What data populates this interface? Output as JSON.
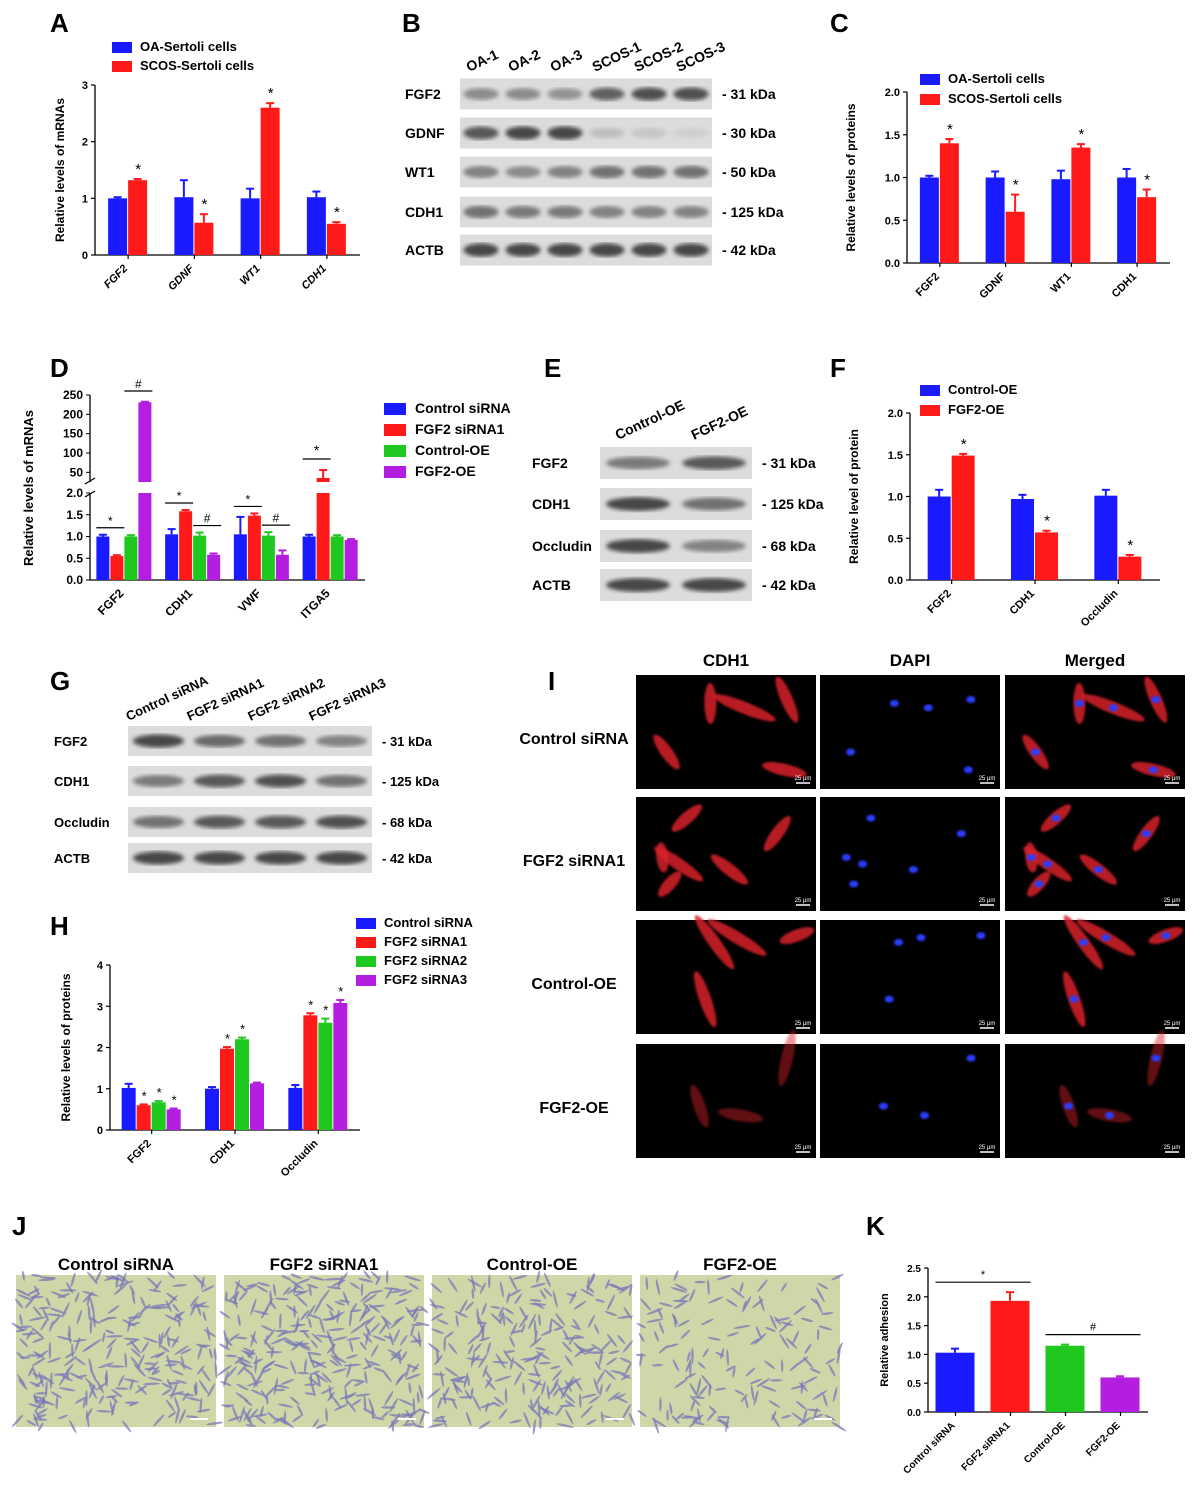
{
  "colors": {
    "blue": "#1a1aff",
    "red": "#ff1a1a",
    "green": "#1ec81e",
    "purple": "#b41ee0",
    "fluor_red": "#d8202a",
    "fluor_blue": "#2a3cff",
    "crystal_bg": "#cfd6a8",
    "crystal_cell": "#7a78b8"
  },
  "panel_letters": [
    "A",
    "B",
    "C",
    "D",
    "E",
    "F",
    "G",
    "H",
    "I",
    "J",
    "K"
  ],
  "chart_data": [
    {
      "id": "A",
      "type": "bar",
      "categories": [
        "FGF2",
        "GDNF",
        "WT1",
        "CDH1"
      ],
      "series": [
        {
          "name": "OA-Sertoli cells",
          "values": [
            1.0,
            1.02,
            1.0,
            1.02
          ],
          "errors": [
            0.02,
            0.3,
            0.17,
            0.1
          ]
        },
        {
          "name": "SCOS-Sertoli cells",
          "values": [
            1.32,
            0.57,
            2.6,
            0.55
          ],
          "errors": [
            0.02,
            0.15,
            0.08,
            0.03
          ]
        }
      ],
      "significance": [
        "*",
        "*",
        "*",
        "*"
      ],
      "ylabel": "Relative levels of mRNAs",
      "ylim": [
        0,
        3
      ],
      "yticks": [
        "0",
        "1",
        "2",
        "3"
      ],
      "category_style": "italic"
    },
    {
      "id": "C",
      "type": "bar",
      "categories": [
        "FGF2",
        "GDNF",
        "WT1",
        "CDH1"
      ],
      "series": [
        {
          "name": "OA-Sertoli cells",
          "values": [
            1.0,
            1.0,
            0.98,
            1.0
          ],
          "errors": [
            0.02,
            0.07,
            0.1,
            0.1
          ]
        },
        {
          "name": "SCOS-Sertoli cells",
          "values": [
            1.4,
            0.6,
            1.35,
            0.77
          ],
          "errors": [
            0.05,
            0.2,
            0.04,
            0.09
          ]
        }
      ],
      "significance": [
        "*",
        "*",
        "*",
        "*"
      ],
      "ylabel": "Relative levels of proteins",
      "ylim": [
        0,
        2.0
      ],
      "yticks": [
        "0.0",
        "0.5",
        "1.0",
        "1.5",
        "2.0"
      ]
    },
    {
      "id": "D",
      "type": "bar",
      "categories": [
        "FGF2",
        "CDH1",
        "VWF",
        "ITGA5"
      ],
      "series": [
        {
          "name": "Control siRNA",
          "values": [
            1.0,
            1.05,
            1.05,
            1.0
          ],
          "errors": [
            0.04,
            0.12,
            0.4,
            0.04
          ]
        },
        {
          "name": "FGF2 siRNA1",
          "values": [
            0.55,
            1.58,
            1.48,
            2.0
          ],
          "errors": [
            0.02,
            0.03,
            0.05,
            0.0
          ]
        },
        {
          "name": "Control-OE",
          "values": [
            1.0,
            1.02,
            1.02,
            1.0
          ],
          "errors": [
            0.03,
            0.07,
            0.08,
            0.03
          ]
        },
        {
          "name": "FGF2-OE",
          "values": [
            231,
            0.58,
            0.58,
            0.92
          ],
          "errors": [
            1.5,
            0.03,
            0.1,
            0.02
          ]
        }
      ],
      "significance_upper": [
        "#",
        "",
        "",
        "*"
      ],
      "significance_lower": [
        "*",
        "* #",
        "* #",
        ""
      ],
      "ylabel": "Relative levels of mRNAs",
      "broken_axis": true,
      "yticks_lower": [
        "0.0",
        "0.5",
        "1.0",
        "1.5",
        "2.0"
      ],
      "yticks_upper": [
        "50",
        "100",
        "150",
        "200",
        "250"
      ]
    },
    {
      "id": "F",
      "type": "bar",
      "categories": [
        "FGF2",
        "CDH1",
        "Occludin"
      ],
      "series": [
        {
          "name": "Control-OE",
          "values": [
            1.0,
            0.97,
            1.01
          ],
          "errors": [
            0.08,
            0.05,
            0.07
          ]
        },
        {
          "name": "FGF2-OE",
          "values": [
            1.49,
            0.57,
            0.28
          ],
          "errors": [
            0.02,
            0.02,
            0.02
          ]
        }
      ],
      "significance": [
        "*",
        "*",
        "*"
      ],
      "ylabel": "Relative level of protein",
      "ylim": [
        0,
        2.0
      ],
      "yticks": [
        "0.0",
        "0.5",
        "1.0",
        "1.5",
        "2.0"
      ]
    },
    {
      "id": "H",
      "type": "bar",
      "categories": [
        "FGF2",
        "CDH1",
        "Occludin"
      ],
      "series": [
        {
          "name": "Control siRNA",
          "values": [
            1.02,
            1.0,
            1.02
          ],
          "errors": [
            0.1,
            0.04,
            0.07
          ]
        },
        {
          "name": "FGF2 siRNA1",
          "values": [
            0.6,
            1.97,
            2.78
          ],
          "errors": [
            0.02,
            0.04,
            0.05
          ]
        },
        {
          "name": "FGF2 siRNA2",
          "values": [
            0.67,
            2.2,
            2.6
          ],
          "errors": [
            0.03,
            0.04,
            0.1
          ]
        },
        {
          "name": "FGF2 siRNA3",
          "values": [
            0.5,
            1.13,
            3.08
          ],
          "errors": [
            0.02,
            0.02,
            0.07
          ]
        }
      ],
      "significance": [
        [
          "*",
          "*",
          "*"
        ],
        [
          "*",
          "*",
          ""
        ],
        [
          "*",
          "*",
          "*"
        ]
      ],
      "ylabel": "Relative levels of proteins",
      "ylim": [
        0,
        4
      ],
      "yticks": [
        "0",
        "1",
        "2",
        "3",
        "4"
      ]
    },
    {
      "id": "K",
      "type": "bar",
      "categories": [
        "Control siRNA",
        "FGF2 siRNA1",
        "Control-OE",
        "FGF2-OE"
      ],
      "values": [
        1.03,
        1.93,
        1.15,
        0.6
      ],
      "errors": [
        0.07,
        0.15,
        0.02,
        0.02
      ],
      "brackets": [
        {
          "from": 0,
          "to": 1,
          "mark": "*"
        },
        {
          "from": 2,
          "to": 3,
          "mark": "#"
        }
      ],
      "ylabel": "Relative adhesion",
      "ylim": [
        0,
        2.5
      ],
      "yticks": [
        "0.0",
        "0.5",
        "1.0",
        "1.5",
        "2.0",
        "2.5"
      ]
    }
  ],
  "blots": {
    "B": {
      "lanes": [
        "OA-1",
        "OA-2",
        "OA-3",
        "SCOS-1",
        "SCOS-2",
        "SCOS-3"
      ],
      "rows": [
        {
          "protein": "FGF2",
          "size": "- 31 kDa",
          "intensity": [
            0.45,
            0.45,
            0.4,
            0.7,
            0.8,
            0.8
          ]
        },
        {
          "protein": "GDNF",
          "size": "- 30 kDa",
          "intensity": [
            0.75,
            0.85,
            0.85,
            0.15,
            0.1,
            0.05
          ]
        },
        {
          "protein": "WT1",
          "size": "- 50 kDa",
          "intensity": [
            0.5,
            0.45,
            0.5,
            0.6,
            0.6,
            0.6
          ]
        },
        {
          "protein": "CDH1",
          "size": "- 125 kDa",
          "intensity": [
            0.6,
            0.55,
            0.55,
            0.5,
            0.5,
            0.5
          ]
        },
        {
          "protein": "ACTB",
          "size": "- 42 kDa",
          "intensity": [
            0.85,
            0.85,
            0.85,
            0.85,
            0.85,
            0.85
          ]
        }
      ]
    },
    "E": {
      "lanes": [
        "Control-OE",
        "FGF2-OE"
      ],
      "rows": [
        {
          "protein": "FGF2",
          "size": "- 31 kDa",
          "intensity": [
            0.55,
            0.75
          ]
        },
        {
          "protein": "CDH1",
          "size": "- 125 kDa",
          "intensity": [
            0.85,
            0.6
          ]
        },
        {
          "protein": "Occludin",
          "size": "- 68 kDa",
          "intensity": [
            0.85,
            0.5
          ]
        },
        {
          "protein": "ACTB",
          "size": "- 42 kDa",
          "intensity": [
            0.85,
            0.85
          ]
        }
      ]
    },
    "G": {
      "lanes": [
        "Control siRNA",
        "FGF2 siRNA1",
        "FGF2 siRNA2",
        "FGF2 siRNA3"
      ],
      "rows": [
        {
          "protein": "FGF2",
          "size": "- 31 kDa",
          "intensity": [
            0.85,
            0.65,
            0.6,
            0.5
          ]
        },
        {
          "protein": "CDH1",
          "size": "- 125 kDa",
          "intensity": [
            0.55,
            0.75,
            0.8,
            0.6
          ]
        },
        {
          "protein": "Occludin",
          "size": "- 68 kDa",
          "intensity": [
            0.6,
            0.75,
            0.75,
            0.8
          ]
        },
        {
          "protein": "ACTB",
          "size": "- 42 kDa",
          "intensity": [
            0.85,
            0.85,
            0.85,
            0.85
          ]
        }
      ]
    }
  },
  "panel_I": {
    "columns": [
      "CDH1",
      "DAPI",
      "Merged"
    ],
    "rows": [
      "Control siRNA",
      "FGF2 siRNA1",
      "Control-OE",
      "FGF2-OE"
    ],
    "scale_label": "25 μm"
  },
  "panel_J": {
    "titles": [
      "Control siRNA",
      "FGF2 siRNA1",
      "Control-OE",
      "FGF2-OE"
    ]
  }
}
